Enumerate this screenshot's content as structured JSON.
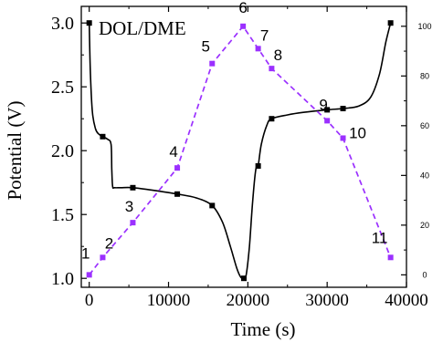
{
  "chart_data": {
    "type": "line",
    "title": "DOL/DME",
    "xlabel": "Time (s)",
    "ylabel": "Potential (V)",
    "xlim": [
      -1000,
      40000
    ],
    "ylim": [
      0.93,
      3.13
    ],
    "y2lim": [
      -5,
      108
    ],
    "x_ticks": [
      "0",
      "10000",
      "20000",
      "30000",
      "40000"
    ],
    "y_ticks": [
      "1.0",
      "1.5",
      "2.0",
      "2.5",
      "3.0"
    ],
    "y2_ticks": [
      "0",
      "20",
      "40",
      "60",
      "80",
      "100"
    ],
    "colors": {
      "voltage": "#000000",
      "percent": "#9b30ff"
    },
    "series": [
      {
        "axis": "left",
        "style": "solid-line-square-markers",
        "curve": [
          [
            0,
            3.0
          ],
          [
            150,
            2.6
          ],
          [
            400,
            2.3
          ],
          [
            800,
            2.17
          ],
          [
            1200,
            2.13
          ],
          [
            1700,
            2.11
          ],
          [
            2300,
            2.09
          ],
          [
            2750,
            2.05
          ],
          [
            2850,
            1.85
          ],
          [
            2950,
            1.72
          ],
          [
            3200,
            1.71
          ],
          [
            4000,
            1.71
          ],
          [
            5500,
            1.71
          ],
          [
            8000,
            1.69
          ],
          [
            11100,
            1.66
          ],
          [
            13500,
            1.63
          ],
          [
            15500,
            1.57
          ],
          [
            16800,
            1.44
          ],
          [
            17800,
            1.25
          ],
          [
            18600,
            1.08
          ],
          [
            19100,
            1.01
          ],
          [
            19500,
            1.0
          ],
          [
            19800,
            1.03
          ],
          [
            20200,
            1.25
          ],
          [
            20600,
            1.6
          ],
          [
            21000,
            1.85
          ],
          [
            21300,
            1.88
          ],
          [
            21700,
            2.05
          ],
          [
            22400,
            2.2
          ],
          [
            23000,
            2.25
          ],
          [
            25000,
            2.28
          ],
          [
            27000,
            2.3
          ],
          [
            30000,
            2.32
          ],
          [
            32000,
            2.33
          ],
          [
            34000,
            2.35
          ],
          [
            35500,
            2.42
          ],
          [
            36600,
            2.6
          ],
          [
            37400,
            2.85
          ],
          [
            38000,
            3.0
          ]
        ],
        "markers": [
          [
            0,
            3.0
          ],
          [
            1700,
            2.11
          ],
          [
            5500,
            1.71
          ],
          [
            11100,
            1.66
          ],
          [
            15500,
            1.57
          ],
          [
            19500,
            1.0
          ],
          [
            21300,
            1.88
          ],
          [
            23000,
            2.25
          ],
          [
            30000,
            2.32
          ],
          [
            32000,
            2.33
          ],
          [
            38000,
            3.0
          ]
        ]
      },
      {
        "axis": "right",
        "style": "dashed-line-square-markers",
        "labels": [
          "1",
          "2",
          "3",
          "4",
          "5",
          "6",
          "7",
          "8",
          "9",
          "10",
          "11"
        ],
        "x": [
          0,
          1700,
          5500,
          11100,
          15500,
          19400,
          21300,
          23000,
          30000,
          32000,
          38000
        ],
        "y": [
          0,
          7,
          21,
          43,
          85,
          100,
          91,
          83,
          62,
          55,
          7
        ]
      }
    ]
  }
}
